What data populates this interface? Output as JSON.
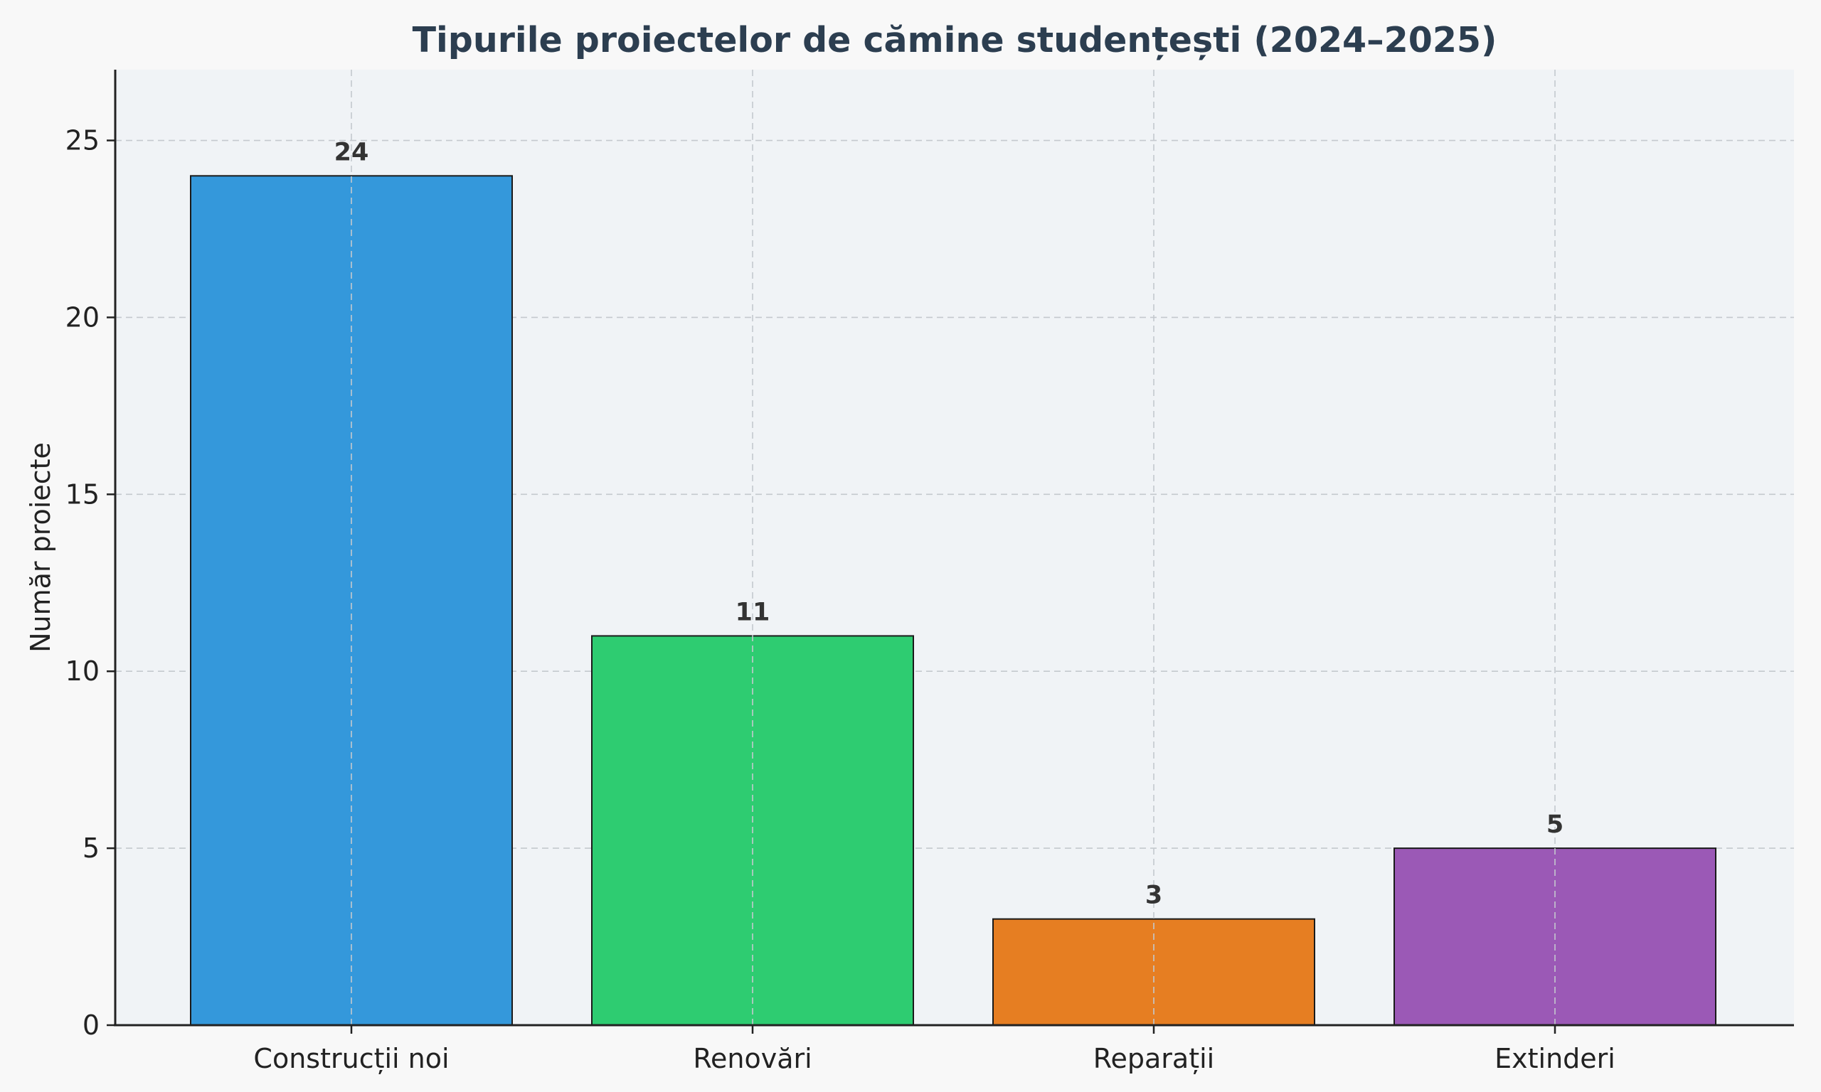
{
  "chart_data": {
    "type": "bar",
    "title": "Tipurile proiectelor de cămine studențești (2024–2025)",
    "xlabel": "",
    "ylabel": "Număr proiecte",
    "categories": [
      "Construcții noi",
      "Renovări",
      "Reparații",
      "Extinderi"
    ],
    "values": [
      24,
      11,
      3,
      5
    ],
    "data_labels": [
      "24",
      "11",
      "3",
      "5"
    ],
    "colors": [
      "#3498db",
      "#2ecc71",
      "#e67e22",
      "#9b59b6"
    ],
    "ylim": [
      0,
      27
    ],
    "yticks": [
      0,
      5,
      10,
      15,
      20,
      25
    ],
    "grid": true,
    "background": "#f0f3f6"
  }
}
